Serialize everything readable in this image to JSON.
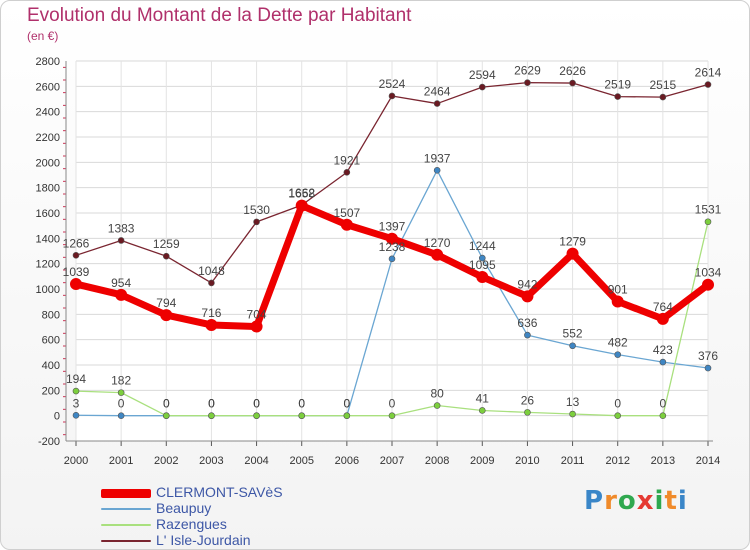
{
  "chart_data": {
    "type": "line",
    "title": "Evolution du Montant de la Dette par Habitant",
    "subtitle": "(en €)",
    "x": [
      2000,
      2001,
      2002,
      2003,
      2004,
      2005,
      2006,
      2007,
      2008,
      2009,
      2010,
      2011,
      2012,
      2013,
      2014
    ],
    "ylim": [
      -200,
      2800
    ],
    "yticks": [
      -200,
      0,
      200,
      400,
      600,
      800,
      1000,
      1200,
      1400,
      1600,
      1800,
      2000,
      2200,
      2400,
      2600,
      2800
    ],
    "grid": true,
    "legend_position": "bottom-left",
    "series": [
      {
        "name": "CLERMONT-SAVèS",
        "color": "#ee0000",
        "marker": "#ee0000",
        "values": [
          1039,
          954,
          794,
          716,
          704,
          1658,
          1507,
          1397,
          1270,
          1095,
          942,
          1279,
          901,
          764,
          1034
        ]
      },
      {
        "name": "Beaupuy",
        "color": "#6aa6d2",
        "marker": "#3f86c3",
        "values": [
          3,
          0,
          0,
          0,
          0,
          0,
          0,
          1238,
          1937,
          1244,
          636,
          552,
          482,
          423,
          376
        ]
      },
      {
        "name": "Razengues",
        "color": "#a9e07e",
        "marker": "#7ccf3d",
        "values": [
          194,
          182,
          0,
          0,
          0,
          0,
          0,
          0,
          80,
          41,
          26,
          13,
          0,
          0,
          1531
        ]
      },
      {
        "name": "L' Isle-Jourdain",
        "color": "#7a2530",
        "marker": "#6a1a22",
        "values": [
          1266,
          1383,
          1259,
          1048,
          1530,
          1662,
          1921,
          2524,
          2464,
          2594,
          2629,
          2626,
          2519,
          2515,
          2614
        ]
      }
    ]
  },
  "logo": {
    "letters": [
      "P",
      "r",
      "o",
      "x",
      "i",
      "t",
      "i"
    ],
    "colors": [
      "#3a86c8",
      "#f08a2a",
      "#2fa84f",
      "#e53a33",
      "#2fa84f",
      "#f08a2a",
      "#3a86c8"
    ]
  }
}
